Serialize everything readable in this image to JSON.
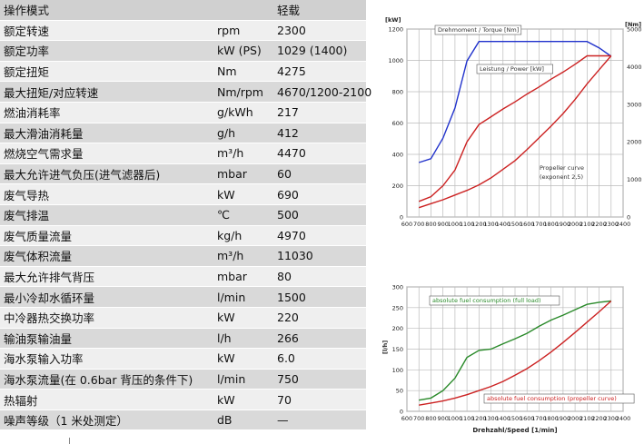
{
  "table": {
    "header": [
      "操作模式",
      "",
      "轻载"
    ],
    "rows": [
      [
        "额定转速",
        "rpm",
        "2300"
      ],
      [
        "额定功率",
        "kW (PS)",
        "1029 (1400)"
      ],
      [
        "额定扭矩",
        "Nm",
        "4275"
      ],
      [
        "最大扭矩/对应转速",
        "Nm/rpm",
        "4670/1200-2100"
      ],
      [
        "燃油消耗率",
        "g/kWh",
        "217"
      ],
      [
        "最大滑油消耗量",
        "g/h",
        "412"
      ],
      [
        "燃烧空气需求量",
        "m³/h",
        "4470"
      ],
      [
        "最大允许进气负压(进气滤器后)",
        "mbar",
        "60"
      ],
      [
        "废气导热",
        "kW",
        "690"
      ],
      [
        "废气排温",
        "℃",
        "500"
      ],
      [
        "废气质量流量",
        "kg/h",
        "4970"
      ],
      [
        "废气体积流量",
        "m³/h",
        "11030"
      ],
      [
        "最大允许排气背压",
        "mbar",
        "80"
      ],
      [
        "最小冷却水循环量",
        "l/min",
        "1500"
      ],
      [
        "中冷器热交换功率",
        "kW",
        "220"
      ],
      [
        "输油泵输油量",
        "l/h",
        "266"
      ],
      [
        "海水泵输入功率",
        "kW",
        "6.0"
      ],
      [
        "海水泵流量(在 0.6bar 背压的条件下)",
        "l/min",
        "750"
      ],
      [
        "热辐射",
        "kW",
        "70"
      ],
      [
        "噪声等级（1 米处测定）",
        "dB",
        "—"
      ]
    ]
  },
  "chart_data": [
    {
      "type": "line",
      "left_unit": "[kW]",
      "right_unit": "[Nm]",
      "x_ticks": [
        600,
        700,
        800,
        900,
        1000,
        1100,
        1200,
        1300,
        1400,
        1500,
        1600,
        1700,
        1800,
        1900,
        2000,
        2100,
        2200,
        2300,
        2400
      ],
      "xlim": [
        600,
        2400
      ],
      "ylim": [
        0,
        1200
      ],
      "y_ticks": [
        0,
        200,
        400,
        600,
        800,
        1000,
        1200
      ],
      "y2lim": [
        0,
        5000
      ],
      "y2_ticks": [
        0,
        1000,
        2000,
        3000,
        4000,
        5000
      ],
      "grid": true,
      "annotations": [
        "Drehmoment / Torque [Nm]",
        "Leistung / Power [kW]",
        "Propeller curve",
        "(exponent 2,5)"
      ],
      "series": [
        {
          "name": "Drehmoment / Torque [Nm]",
          "axis": "right",
          "color": "#2233cc",
          "x": [
            700,
            800,
            900,
            1000,
            1100,
            1200,
            1300,
            1400,
            1500,
            1600,
            1700,
            1800,
            1900,
            2000,
            2100,
            2200,
            2300
          ],
          "y": [
            1450,
            1550,
            2100,
            2900,
            4150,
            4670,
            4670,
            4670,
            4670,
            4670,
            4670,
            4670,
            4670,
            4670,
            4670,
            4500,
            4275
          ]
        },
        {
          "name": "Leistung / Power [kW]",
          "axis": "left",
          "color": "#cc2222",
          "x": [
            700,
            800,
            900,
            1000,
            1100,
            1200,
            1300,
            1400,
            1500,
            1600,
            1700,
            1800,
            1900,
            2000,
            2100,
            2200,
            2300
          ],
          "y": [
            100,
            130,
            200,
            300,
            480,
            590,
            640,
            690,
            735,
            785,
            830,
            880,
            925,
            975,
            1029,
            1029,
            1029
          ]
        },
        {
          "name": "Propeller curve",
          "axis": "left",
          "color": "#cc2222",
          "x": [
            700,
            800,
            900,
            1000,
            1100,
            1200,
            1300,
            1400,
            1500,
            1600,
            1700,
            1800,
            1900,
            2000,
            2100,
            2200,
            2300
          ],
          "y": [
            60,
            85,
            110,
            140,
            170,
            205,
            250,
            305,
            360,
            430,
            505,
            580,
            660,
            750,
            850,
            940,
            1029
          ]
        }
      ]
    },
    {
      "type": "line",
      "left_unit": "[l/h]",
      "xlabel": "Drehzahl/Speed [1/min]",
      "x_ticks": [
        600,
        700,
        800,
        900,
        1000,
        1100,
        1200,
        1300,
        1400,
        1500,
        1600,
        1700,
        1800,
        1900,
        2000,
        2100,
        2200,
        2300,
        2400
      ],
      "xlim": [
        600,
        2400
      ],
      "ylim": [
        0,
        300
      ],
      "y_ticks": [
        0,
        50,
        100,
        150,
        200,
        250,
        300
      ],
      "grid": true,
      "annotations": [
        "absolute fuel consumption (full load)",
        "absolute fuel consumption (propeller curve)"
      ],
      "series": [
        {
          "name": "absolute fuel consumption (full load)",
          "color": "#2a8a2a",
          "x": [
            700,
            800,
            900,
            1000,
            1100,
            1200,
            1300,
            1400,
            1500,
            1600,
            1700,
            1800,
            1900,
            2000,
            2100,
            2200,
            2300
          ],
          "y": [
            27,
            32,
            50,
            80,
            130,
            147,
            150,
            163,
            175,
            188,
            205,
            220,
            232,
            245,
            258,
            263,
            266
          ]
        },
        {
          "name": "absolute fuel consumption (propeller curve)",
          "color": "#cc2222",
          "x": [
            700,
            800,
            900,
            1000,
            1100,
            1200,
            1300,
            1400,
            1500,
            1600,
            1700,
            1800,
            1900,
            2000,
            2100,
            2200,
            2300
          ],
          "y": [
            15,
            20,
            25,
            32,
            40,
            50,
            60,
            72,
            87,
            103,
            122,
            143,
            166,
            190,
            215,
            240,
            266
          ]
        }
      ]
    }
  ]
}
